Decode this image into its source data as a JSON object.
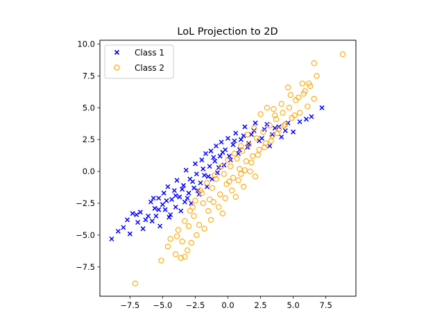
{
  "chart_data": {
    "type": "scatter",
    "title": "LoL Projection to 2D",
    "xlabel": "",
    "ylabel": "",
    "xlim": [
      -9.8,
      9.8
    ],
    "ylim": [
      -9.8,
      10.3
    ],
    "x_ticks": [
      "−7.5",
      "−5.0",
      "−2.5",
      "0.0",
      "2.5",
      "5.0",
      "7.5"
    ],
    "x_tick_values": [
      -7.5,
      -5.0,
      -2.5,
      0.0,
      2.5,
      5.0,
      7.5
    ],
    "y_ticks": [
      "−7.5",
      "−5.0",
      "−2.5",
      "0.0",
      "2.5",
      "5.0",
      "7.5",
      "10.0"
    ],
    "y_tick_values": [
      -7.5,
      -5.0,
      -2.5,
      0.0,
      2.5,
      5.0,
      7.5,
      10.0
    ],
    "grid": false,
    "legend_position": "top-left",
    "series": [
      {
        "name": "Class 1",
        "marker": "x",
        "color": "#0000ff",
        "points": [
          [
            -8.9,
            -5.3
          ],
          [
            -8.4,
            -4.7
          ],
          [
            -8.0,
            -4.4
          ],
          [
            -7.7,
            -3.8
          ],
          [
            -7.5,
            -4.9
          ],
          [
            -7.3,
            -3.3
          ],
          [
            -7.0,
            -3.4
          ],
          [
            -6.9,
            -4.0
          ],
          [
            -6.7,
            -3.2
          ],
          [
            -6.5,
            -4.5
          ],
          [
            -6.1,
            -3.5
          ],
          [
            -5.9,
            -2.4
          ],
          [
            -5.8,
            -3.9
          ],
          [
            -5.6,
            -2.9
          ],
          [
            -5.5,
            -3.5
          ],
          [
            -5.3,
            -2.1
          ],
          [
            -5.2,
            -4.3
          ],
          [
            -5.0,
            -2.6
          ],
          [
            -4.9,
            -1.7
          ],
          [
            -4.8,
            -3.0
          ],
          [
            -4.6,
            -1.2
          ],
          [
            -4.4,
            -3.4
          ],
          [
            -4.3,
            -2.2
          ],
          [
            -4.1,
            -1.5
          ],
          [
            -4.0,
            -2.8
          ],
          [
            -3.9,
            -0.7
          ],
          [
            -3.7,
            -2.0
          ],
          [
            -3.6,
            -3.1
          ],
          [
            -3.4,
            -1.1
          ],
          [
            -3.3,
            -2.4
          ],
          [
            -3.2,
            0.1
          ],
          [
            -3.0,
            -1.7
          ],
          [
            -2.9,
            -0.6
          ],
          [
            -2.8,
            -2.5
          ],
          [
            -2.6,
            -1.3
          ],
          [
            -2.5,
            0.6
          ],
          [
            -2.4,
            -0.2
          ],
          [
            -2.2,
            -1.8
          ],
          [
            -2.1,
            -0.9
          ],
          [
            -2.0,
            0.9
          ],
          [
            -1.8,
            -0.3
          ],
          [
            -1.7,
            1.4
          ],
          [
            -1.6,
            -1.2
          ],
          [
            -1.4,
            0.4
          ],
          [
            -1.3,
            1.6
          ],
          [
            -1.2,
            -0.6
          ],
          [
            -1.0,
            0.8
          ],
          [
            -0.9,
            2.0
          ],
          [
            -0.8,
            -0.1
          ],
          [
            -0.6,
            1.2
          ],
          [
            -0.5,
            2.3
          ],
          [
            -0.3,
            0.5
          ],
          [
            -0.2,
            1.7
          ],
          [
            0.0,
            2.6
          ],
          [
            0.2,
            0.9
          ],
          [
            0.4,
            2.1
          ],
          [
            0.6,
            3.0
          ],
          [
            0.8,
            1.4
          ],
          [
            1.0,
            2.5
          ],
          [
            1.3,
            3.5
          ],
          [
            1.5,
            1.9
          ],
          [
            1.8,
            2.9
          ],
          [
            2.1,
            3.8
          ],
          [
            2.4,
            2.4
          ],
          [
            2.8,
            3.3
          ],
          [
            3.2,
            2.0
          ],
          [
            3.6,
            3.4
          ],
          [
            4.1,
            2.7
          ],
          [
            4.6,
            3.8
          ],
          [
            5.0,
            3.1
          ],
          [
            5.5,
            3.9
          ],
          [
            6.0,
            4.1
          ],
          [
            6.4,
            4.3
          ],
          [
            7.2,
            5.0
          ],
          [
            -5.3,
            -3.0
          ],
          [
            -4.7,
            -2.3
          ],
          [
            -4.0,
            -1.9
          ],
          [
            -3.5,
            -1.4
          ],
          [
            -3.1,
            -2.1
          ],
          [
            -2.7,
            -0.8
          ],
          [
            -2.3,
            -1.5
          ],
          [
            -1.9,
            0.2
          ],
          [
            -1.5,
            -0.4
          ],
          [
            -1.1,
            1.1
          ],
          [
            -0.7,
            0.3
          ],
          [
            -0.4,
            1.5
          ],
          [
            0.1,
            1.2
          ],
          [
            0.5,
            2.4
          ],
          [
            0.9,
            1.7
          ],
          [
            1.2,
            2.8
          ],
          [
            1.6,
            2.2
          ],
          [
            2.0,
            3.2
          ],
          [
            2.6,
            2.6
          ],
          [
            3.0,
            3.7
          ],
          [
            3.4,
            2.9
          ],
          [
            3.9,
            3.5
          ],
          [
            4.4,
            3.2
          ],
          [
            -6.3,
            -3.8
          ],
          [
            -5.7,
            -2.1
          ],
          [
            -4.5,
            -3.6
          ]
        ]
      },
      {
        "name": "Class 2",
        "marker": "o",
        "color": "#ffa500",
        "points": [
          [
            -7.1,
            -8.8
          ],
          [
            -5.1,
            -7.0
          ],
          [
            -4.6,
            -5.9
          ],
          [
            -4.0,
            -6.5
          ],
          [
            -3.6,
            -6.8
          ],
          [
            -3.3,
            -6.7
          ],
          [
            -3.9,
            -5.1
          ],
          [
            -4.4,
            -5.3
          ],
          [
            -3.5,
            -5.5
          ],
          [
            -3.0,
            -4.3
          ],
          [
            -2.6,
            -3.5
          ],
          [
            -2.2,
            -4.2
          ],
          [
            -2.7,
            -2.8
          ],
          [
            -1.9,
            -2.5
          ],
          [
            -1.5,
            -3.1
          ],
          [
            -2.0,
            -1.7
          ],
          [
            -1.2,
            -1.3
          ],
          [
            -1.4,
            -2.2
          ],
          [
            -0.9,
            -0.6
          ],
          [
            -0.6,
            -1.8
          ],
          [
            -0.3,
            -0.2
          ],
          [
            -0.1,
            -1.0
          ],
          [
            0.2,
            0.4
          ],
          [
            0.4,
            -0.5
          ],
          [
            0.7,
            1.0
          ],
          [
            0.9,
            0.2
          ],
          [
            1.1,
            1.6
          ],
          [
            1.4,
            0.8
          ],
          [
            1.6,
            2.1
          ],
          [
            1.9,
            1.2
          ],
          [
            2.2,
            2.6
          ],
          [
            2.4,
            1.7
          ],
          [
            2.7,
            3.1
          ],
          [
            2.9,
            2.2
          ],
          [
            3.2,
            3.6
          ],
          [
            3.4,
            2.8
          ],
          [
            3.7,
            4.1
          ],
          [
            3.9,
            3.3
          ],
          [
            4.2,
            4.6
          ],
          [
            4.4,
            3.7
          ],
          [
            4.7,
            5.0
          ],
          [
            4.9,
            4.2
          ],
          [
            5.2,
            5.6
          ],
          [
            5.5,
            4.6
          ],
          [
            5.8,
            6.1
          ],
          [
            6.1,
            5.1
          ],
          [
            6.3,
            6.7
          ],
          [
            6.6,
            5.7
          ],
          [
            6.6,
            8.5
          ],
          [
            6.8,
            7.5
          ],
          [
            6.2,
            6.9
          ],
          [
            5.9,
            6.3
          ],
          [
            4.8,
            6.0
          ],
          [
            4.6,
            6.6
          ],
          [
            5.4,
            5.8
          ],
          [
            8.8,
            9.2
          ],
          [
            3.5,
            4.9
          ],
          [
            3.0,
            5.0
          ],
          [
            2.5,
            4.5
          ],
          [
            2.0,
            3.4
          ],
          [
            1.5,
            2.9
          ],
          [
            1.0,
            2.0
          ],
          [
            0.5,
            1.4
          ],
          [
            0.0,
            0.9
          ],
          [
            -0.5,
            0.4
          ],
          [
            -1.0,
            -0.3
          ],
          [
            -1.6,
            -0.9
          ],
          [
            -2.1,
            -1.5
          ],
          [
            -2.5,
            -2.3
          ],
          [
            -2.9,
            -3.1
          ],
          [
            -3.3,
            -3.9
          ],
          [
            -3.8,
            -4.6
          ],
          [
            -1.3,
            -3.8
          ],
          [
            -0.7,
            -2.8
          ],
          [
            -0.2,
            -2.1
          ],
          [
            0.3,
            -1.5
          ],
          [
            0.8,
            -0.7
          ],
          [
            1.3,
            0.1
          ],
          [
            1.8,
            0.7
          ],
          [
            2.3,
            1.3
          ],
          [
            2.8,
            1.9
          ],
          [
            3.3,
            2.4
          ],
          [
            3.8,
            3.0
          ],
          [
            4.3,
            3.6
          ],
          [
            5.1,
            4.4
          ],
          [
            -1.8,
            -4.5
          ],
          [
            -2.4,
            -5.0
          ],
          [
            -0.4,
            -3.3
          ],
          [
            0.6,
            -2.0
          ],
          [
            1.2,
            -1.2
          ],
          [
            1.7,
            0.0
          ],
          [
            2.1,
            -0.4
          ],
          [
            -1.1,
            -2.4
          ],
          [
            0.1,
            -0.8
          ],
          [
            1.0,
            -0.2
          ],
          [
            -3.1,
            -6.2
          ],
          [
            -2.8,
            -5.6
          ],
          [
            5.7,
            6.9
          ],
          [
            4.1,
            5.3
          ],
          [
            3.6,
            4.4
          ]
        ]
      }
    ]
  }
}
